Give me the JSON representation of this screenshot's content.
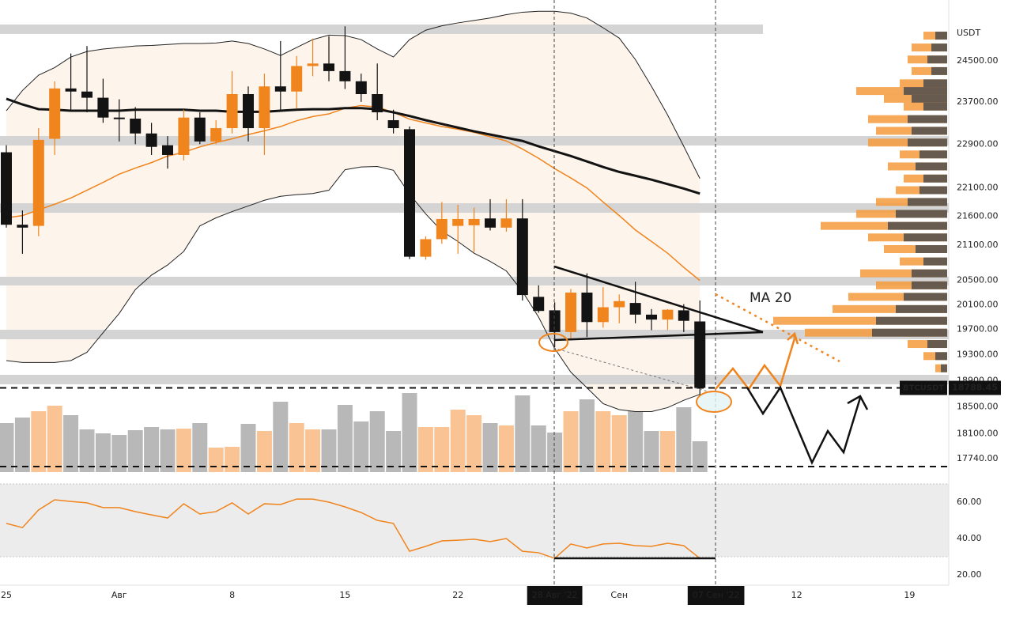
{
  "chart_data": {
    "type": "candlestick",
    "symbol": "BTCUSDT",
    "last_price": 18788.45,
    "currency_label": "USDT",
    "ma_label": "MA 20",
    "log": true,
    "ylim": [
      17513,
      25744
    ],
    "yticks": [
      {
        "value": 24500,
        "label": "24500.00"
      },
      {
        "value": 23700,
        "label": "23700.00"
      },
      {
        "value": 22900,
        "label": "22900.00"
      },
      {
        "value": 22100,
        "label": "22100.00"
      },
      {
        "value": 21600,
        "label": "21600.00"
      },
      {
        "value": 21100,
        "label": "21100.00"
      },
      {
        "value": 20500,
        "label": "20500.00"
      },
      {
        "value": 20100,
        "label": "20100.00"
      },
      {
        "value": 19700,
        "label": "19700.00"
      },
      {
        "value": 19300,
        "label": "19300.00"
      },
      {
        "value": 18900,
        "label": "18900.00"
      },
      {
        "value": 18500,
        "label": "18500.00"
      },
      {
        "value": 18100,
        "label": "18100.00"
      },
      {
        "value": 17740,
        "label": "17740.00"
      }
    ],
    "xlim": [
      -0.392,
      58.43
    ],
    "xticks": [
      {
        "value": 0,
        "label": "25"
      },
      {
        "value": 7,
        "label": "Авг"
      },
      {
        "value": 14,
        "label": "8"
      },
      {
        "value": 21,
        "label": "15"
      },
      {
        "value": 28,
        "label": "22"
      },
      {
        "value": 34,
        "label": "28 Авг '22",
        "highlight": true
      },
      {
        "value": 38,
        "label": "Сен"
      },
      {
        "value": 44,
        "label": "07 Сен '22",
        "highlight": true
      },
      {
        "value": 49,
        "label": "12"
      },
      {
        "value": 56,
        "label": "19"
      }
    ],
    "up_color": "#f0841d",
    "down_color": "#131313",
    "candles": {
      "open": [
        22750,
        21450,
        21430,
        23000,
        23960,
        23900,
        23780,
        23400,
        23380,
        23100,
        22880,
        22700,
        23400,
        22950,
        23200,
        23850,
        23200,
        24000,
        23900,
        24400,
        24450,
        24300,
        24100,
        23850,
        23350,
        23180,
        20900,
        21200,
        21430,
        21440,
        21560,
        21400,
        21560,
        20230,
        20010,
        19660,
        20300,
        19820,
        20060,
        20130,
        19940,
        19860,
        20010,
        19830
      ],
      "high": [
        22880,
        21700,
        23200,
        24100,
        24650,
        24800,
        24150,
        23750,
        23600,
        23300,
        23050,
        23550,
        23500,
        23350,
        24300,
        24000,
        24250,
        24900,
        24600,
        24950,
        25000,
        25200,
        24250,
        24450,
        23550,
        23230,
        21250,
        21850,
        21800,
        21750,
        21900,
        21900,
        21900,
        20420,
        20140,
        20360,
        20620,
        20390,
        20270,
        20480,
        20030,
        20030,
        20110,
        20170
      ],
      "low": [
        21400,
        20950,
        21250,
        22700,
        23550,
        23500,
        23300,
        22950,
        22900,
        22700,
        22450,
        22600,
        22900,
        22900,
        23100,
        22950,
        22700,
        23550,
        23570,
        24200,
        24100,
        23950,
        23700,
        23350,
        23100,
        20860,
        20850,
        21120,
        20950,
        20980,
        21350,
        21330,
        20170,
        19970,
        19420,
        19540,
        19580,
        19730,
        19800,
        19800,
        19690,
        19690,
        19660,
        18660
      ],
      "close": [
        21450,
        21400,
        22980,
        23960,
        23900,
        23780,
        23400,
        23380,
        23100,
        22850,
        22700,
        23400,
        22950,
        23200,
        23850,
        23200,
        24000,
        23900,
        24400,
        24450,
        24300,
        24100,
        23850,
        23500,
        23200,
        20900,
        21200,
        21550,
        21550,
        21550,
        21400,
        21560,
        20260,
        20000,
        19660,
        20300,
        19820,
        20060,
        20160,
        19940,
        19860,
        20020,
        19840,
        18788.45
      ]
    },
    "indicators": {
      "ma20": {
        "color": "#f0841d",
        "width": 1.5,
        "values": [
          21570,
          21610,
          21710,
          21810,
          21920,
          22060,
          22200,
          22350,
          22460,
          22560,
          22680,
          22750,
          22850,
          22930,
          23000,
          23080,
          23150,
          23230,
          23340,
          23420,
          23470,
          23580,
          23630,
          23600,
          23500,
          23370,
          23300,
          23230,
          23180,
          23120,
          23040,
          22960,
          22810,
          22640,
          22450,
          22280,
          22100,
          21850,
          21610,
          21360,
          21160,
          20960,
          20720,
          20500
        ]
      },
      "ma_slow": {
        "color": "#131313",
        "width": 3,
        "values": [
          23760,
          23650,
          23560,
          23550,
          23530,
          23530,
          23530,
          23530,
          23550,
          23550,
          23550,
          23550,
          23530,
          23530,
          23510,
          23510,
          23510,
          23530,
          23550,
          23560,
          23560,
          23580,
          23580,
          23560,
          23500,
          23430,
          23350,
          23280,
          23210,
          23140,
          23080,
          23020,
          22960,
          22860,
          22770,
          22680,
          22580,
          22480,
          22390,
          22320,
          22250,
          22170,
          22090,
          22000
        ]
      },
      "bb_upper": {
        "color": "#222222",
        "width": 1,
        "values": [
          23530,
          23920,
          24220,
          24370,
          24580,
          24690,
          24740,
          24770,
          24800,
          24810,
          24830,
          24850,
          24850,
          24860,
          24900,
          24850,
          24740,
          24610,
          24770,
          24930,
          25020,
          25010,
          24930,
          24740,
          24580,
          24930,
          25120,
          25210,
          25270,
          25320,
          25370,
          25440,
          25490,
          25510,
          25510,
          25470,
          25370,
          25170,
          24960,
          24530,
          24000,
          23450,
          22860,
          22270
        ]
      },
      "bb_lower": {
        "color": "#222222",
        "width": 1,
        "values": [
          19210,
          19180,
          19180,
          19180,
          19210,
          19340,
          19650,
          19960,
          20350,
          20590,
          20760,
          20990,
          21430,
          21570,
          21680,
          21780,
          21880,
          21950,
          21980,
          22000,
          22060,
          22430,
          22480,
          22490,
          22420,
          21990,
          21640,
          21340,
          21160,
          20960,
          20820,
          20660,
          20320,
          19900,
          19400,
          19030,
          18790,
          18550,
          18460,
          18430,
          18430,
          18490,
          18600,
          18690
        ]
      }
    },
    "band_fill": "#fdf4ec",
    "volume": {
      "vlim": [
        0,
        100
      ],
      "up_color": "#f9c393",
      "down_color": "#b8b8b8",
      "values": [
        62,
        69,
        77,
        84,
        72,
        54,
        49,
        47,
        53,
        57,
        54,
        55,
        62,
        31,
        32,
        61,
        52,
        89,
        62,
        54,
        54,
        85,
        64,
        77,
        52,
        100,
        57,
        57,
        79,
        72,
        62,
        59,
        97,
        59,
        50,
        77,
        92,
        77,
        72,
        77,
        52,
        52,
        82,
        39
      ]
    },
    "volume_profile": {
      "lim": [
        0,
        120
      ],
      "buy_color": "#f39a3c",
      "sell_color": "#4d4d4d",
      "prices": [
        25010,
        24770,
        24530,
        24300,
        24060,
        23910,
        23760,
        23610,
        23370,
        23150,
        22930,
        22710,
        22490,
        22270,
        22060,
        21850,
        21640,
        21430,
        21230,
        21030,
        20820,
        20620,
        20420,
        20230,
        20030,
        19840,
        19650,
        19470,
        19280,
        19090
      ],
      "total": [
        30,
        45,
        50,
        45,
        60,
        115,
        80,
        55,
        100,
        90,
        100,
        60,
        75,
        55,
        65,
        90,
        115,
        160,
        100,
        80,
        60,
        110,
        90,
        125,
        145,
        220,
        180,
        50,
        30,
        15
      ],
      "sell": [
        15,
        20,
        25,
        20,
        30,
        55,
        45,
        30,
        50,
        45,
        50,
        35,
        40,
        30,
        35,
        50,
        65,
        75,
        55,
        40,
        30,
        45,
        45,
        55,
        65,
        90,
        95,
        25,
        15,
        8
      ]
    },
    "rsi": {
      "color": "#f0841d",
      "ylim": [
        15,
        72
      ],
      "band": [
        30,
        70
      ],
      "yticks": [
        {
          "value": 60,
          "label": "60.00"
        },
        {
          "value": 40,
          "label": "40.00"
        },
        {
          "value": 20,
          "label": "20.00"
        }
      ],
      "values": [
        48.3,
        46,
        55.7,
        61.3,
        60.4,
        59.6,
        57,
        57,
        54.8,
        53,
        51.3,
        59.1,
        53.5,
        54.8,
        59.6,
        53.5,
        59.1,
        58.7,
        61.7,
        61.7,
        60,
        57.4,
        54.3,
        50,
        48.3,
        33,
        35.7,
        38.7,
        39.1,
        39.6,
        38.3,
        40,
        33,
        32.2,
        29.1,
        37,
        34.8,
        37,
        37.4,
        36.1,
        35.7,
        37.4,
        36.1,
        29.1
      ]
    }
  }
}
